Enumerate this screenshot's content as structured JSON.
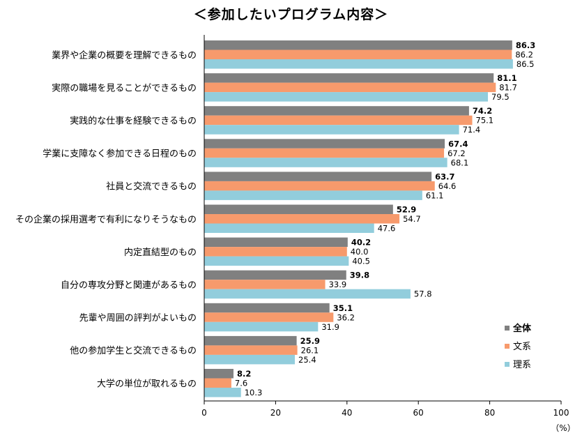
{
  "chart_data": {
    "type": "bar",
    "orientation": "horizontal",
    "title": "＜参加したいプログラム内容＞",
    "unit": "（%）",
    "xlim": [
      0,
      100
    ],
    "xticks": [
      0,
      20,
      40,
      60,
      80,
      100
    ],
    "grid": false,
    "legend_position": "bottom-right",
    "categories": [
      "業界や企業の概要を理解できるもの",
      "実際の職場を見ることができるもの",
      "実践的な仕事を経験できるもの",
      "学業に支障なく参加できる日程のもの",
      "社員と交流できるもの",
      "その企業の採用選考で有利になりそうなもの",
      "内定直結型のもの",
      "自分の専攻分野と関連があるもの",
      "先輩や周囲の評判がよいもの",
      "他の参加学生と交流できるもの",
      "大学の単位が取れるもの"
    ],
    "series": [
      {
        "name": "全体",
        "color": "#808080",
        "values": [
          86.3,
          81.1,
          74.2,
          67.4,
          63.7,
          52.9,
          40.2,
          39.8,
          35.1,
          25.9,
          8.2
        ]
      },
      {
        "name": "文系",
        "color": "#F79A6C",
        "values": [
          86.2,
          81.7,
          75.1,
          67.2,
          64.6,
          54.7,
          40.0,
          33.9,
          36.2,
          26.1,
          7.6
        ]
      },
      {
        "name": "理系",
        "color": "#92CDDC",
        "values": [
          86.5,
          79.5,
          71.4,
          68.1,
          61.1,
          47.6,
          40.5,
          57.8,
          31.9,
          25.4,
          10.3
        ]
      }
    ]
  }
}
